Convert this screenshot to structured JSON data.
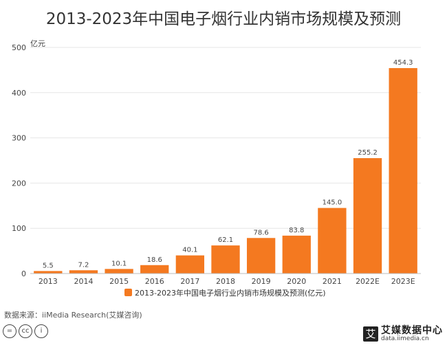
{
  "chart_data": {
    "type": "bar",
    "title": "2013-2023年中国电子烟行业内销市场规模及预测",
    "ylabel": "亿元",
    "xlabel": "",
    "ylim": [
      0,
      500
    ],
    "yticks": [
      0,
      100,
      200,
      300,
      400,
      500
    ],
    "grid": true,
    "legend_placement": "bottom",
    "categories": [
      "2013",
      "2014",
      "2015",
      "2016",
      "2017",
      "2018",
      "2019",
      "2020",
      "2021",
      "2022E",
      "2023E"
    ],
    "series": [
      {
        "name": "2013-2023年中国电子烟行业内销市场规模及预测(亿元)",
        "values": [
          5.5,
          7.2,
          10.1,
          18.6,
          40.1,
          62.1,
          78.6,
          83.8,
          145.0,
          255.2,
          454.3
        ],
        "labels": [
          "5.5",
          "7.2",
          "10.1",
          "18.6",
          "40.1",
          "62.1",
          "78.6",
          "83.8",
          "145.0",
          "255.2",
          "454.3"
        ],
        "color": "#f47920"
      }
    ]
  },
  "footer": {
    "source": "数据来源：iiMedia Research(艾媒咨询)",
    "license_icons": [
      "equals-icon",
      "cc-icon",
      "person-icon"
    ],
    "license_glyphs": [
      "=",
      "cc",
      "i"
    ],
    "brand_mark": "艾",
    "brand_name": "艾媒数据中心",
    "brand_url": "data.iimedia.cn"
  }
}
